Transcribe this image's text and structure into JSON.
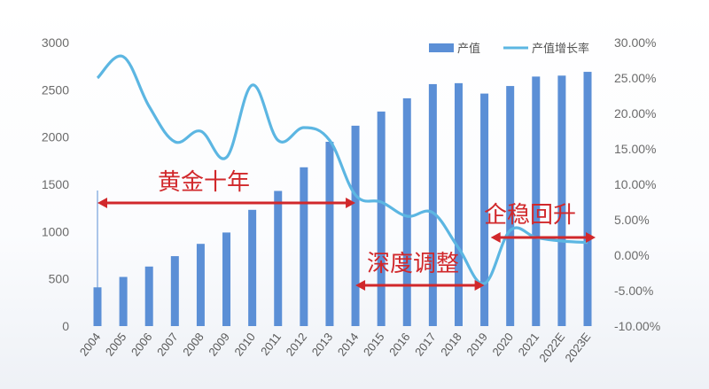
{
  "colors": {
    "bar": "#5b8fd6",
    "line": "#5cb6e2",
    "annotation": "#d1282b",
    "axis_text": "#6b6b6b"
  },
  "chart_data": {
    "type": "bar",
    "categories": [
      "2004",
      "2005",
      "2006",
      "2007",
      "2008",
      "2009",
      "2010",
      "2011",
      "2012",
      "2013",
      "2014",
      "2015",
      "2016",
      "2017",
      "2018",
      "2019",
      "2020",
      "2021",
      "2022E",
      "2023E"
    ],
    "series": [
      {
        "name": "产值",
        "type": "bar",
        "axis": "left",
        "values": [
          410,
          520,
          630,
          740,
          870,
          990,
          1230,
          1430,
          1680,
          1950,
          2120,
          2270,
          2410,
          2560,
          2570,
          2460,
          2540,
          2640,
          2650,
          2690
        ]
      },
      {
        "name": "产值增长率",
        "type": "line",
        "axis": "right",
        "unit": "%",
        "values": [
          25.0,
          28.0,
          21.0,
          16.0,
          17.5,
          13.8,
          24.0,
          16.2,
          18.0,
          16.2,
          8.5,
          7.5,
          5.5,
          6.0,
          1.0,
          -4.0,
          3.5,
          2.5,
          2.0,
          1.8
        ]
      }
    ],
    "y_left": {
      "ylim": [
        0,
        3000
      ],
      "ticks": [
        "0",
        "500",
        "1000",
        "1500",
        "2000",
        "2500",
        "3000"
      ]
    },
    "y_right": {
      "ylim": [
        -10,
        30
      ],
      "ticks": [
        "-10.00%",
        "-5.00%",
        "0.00%",
        "5.00%",
        "10.00%",
        "15.00%",
        "20.00%",
        "25.00%",
        "30.00%"
      ]
    },
    "legend": {
      "position": "top-right",
      "items": [
        "产值",
        "产值增长率"
      ]
    },
    "grid": false,
    "annotations": [
      {
        "text": "黄金十年",
        "from": "2004",
        "to": "2014"
      },
      {
        "text": "深度调整",
        "from": "2014",
        "to": "2019"
      },
      {
        "text": "企稳回升",
        "from": "2020",
        "to": "2023E"
      }
    ]
  }
}
